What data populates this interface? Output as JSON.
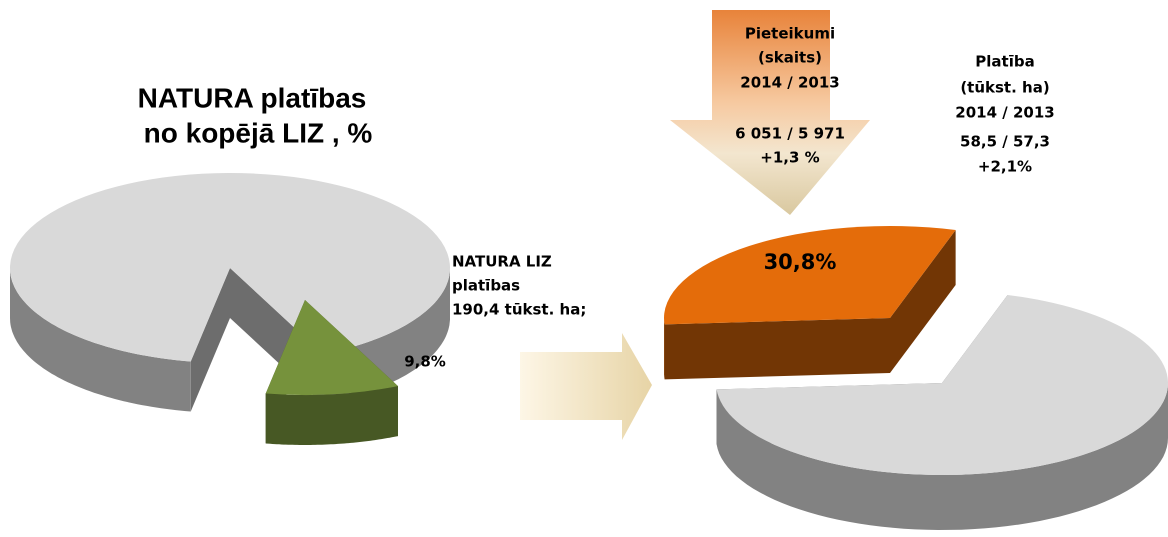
{
  "chart_data": [
    {
      "type": "pie",
      "title": [
        "NATURA platības",
        "no kopējā LIZ , %"
      ],
      "values": [
        90.2,
        9.8
      ],
      "value_labels": [
        null,
        "9,8%"
      ],
      "colors": [
        "#d9d9d9",
        "#76923c"
      ],
      "annotations": [
        "NATURA  LIZ",
        "platības",
        " 190,4 tūkst. ha;"
      ]
    },
    {
      "type": "pie",
      "values": [
        30.8,
        69.2
      ],
      "value_labels": [
        "30,8%",
        null
      ],
      "colors": [
        "#e46c0a",
        "#d9d9d9"
      ],
      "annotations": [
        "Pieteikumi",
        "(skaits)",
        "2014 / 2013",
        "6 051 / 5 971",
        "+1,3 %",
        "Platība",
        "(tūkst. ha)",
        "2014 / 2013",
        "58,5 / 57,3",
        "+2,1%"
      ]
    }
  ]
}
